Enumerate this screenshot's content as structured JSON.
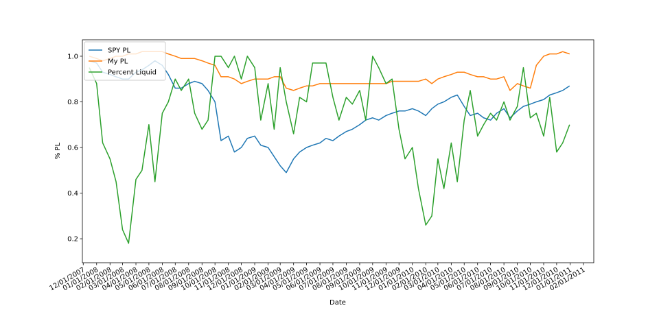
{
  "chart_data": {
    "type": "line",
    "x_label": "Date",
    "y_label": "% PL",
    "x": [
      "2007-12-15",
      "2008-01-01",
      "2008-01-15",
      "2008-02-01",
      "2008-02-15",
      "2008-03-01",
      "2008-03-15",
      "2008-04-01",
      "2008-04-15",
      "2008-05-01",
      "2008-05-15",
      "2008-06-01",
      "2008-06-15",
      "2008-07-01",
      "2008-07-15",
      "2008-08-01",
      "2008-08-15",
      "2008-09-01",
      "2008-09-15",
      "2008-10-01",
      "2008-10-15",
      "2008-11-01",
      "2008-11-15",
      "2008-12-01",
      "2008-12-15",
      "2009-01-01",
      "2009-01-15",
      "2009-02-01",
      "2009-02-15",
      "2009-03-01",
      "2009-03-15",
      "2009-04-01",
      "2009-04-15",
      "2009-05-01",
      "2009-05-15",
      "2009-06-01",
      "2009-06-15",
      "2009-07-01",
      "2009-07-15",
      "2009-08-01",
      "2009-08-15",
      "2009-09-01",
      "2009-09-15",
      "2009-10-01",
      "2009-10-15",
      "2009-11-01",
      "2009-11-15",
      "2009-12-01",
      "2009-12-15",
      "2010-01-01",
      "2010-01-15",
      "2010-02-01",
      "2010-02-15",
      "2010-03-01",
      "2010-03-15",
      "2010-04-01",
      "2010-04-15",
      "2010-05-01",
      "2010-05-15",
      "2010-06-01",
      "2010-06-15",
      "2010-07-01",
      "2010-07-15",
      "2010-08-01",
      "2010-08-15",
      "2010-09-01",
      "2010-09-15",
      "2010-10-01",
      "2010-10-15",
      "2010-11-01",
      "2010-11-15",
      "2010-12-01",
      "2010-12-15",
      "2010-12-31"
    ],
    "series": [
      {
        "name": "SPY PL",
        "color": "#1f77b4",
        "values": [
          0.98,
          0.97,
          0.93,
          0.92,
          0.91,
          0.9,
          0.9,
          0.93,
          0.94,
          0.96,
          0.98,
          0.96,
          0.92,
          0.86,
          0.86,
          0.88,
          0.89,
          0.88,
          0.85,
          0.8,
          0.63,
          0.65,
          0.58,
          0.6,
          0.64,
          0.65,
          0.61,
          0.6,
          0.56,
          0.52,
          0.49,
          0.55,
          0.58,
          0.6,
          0.61,
          0.62,
          0.64,
          0.63,
          0.65,
          0.67,
          0.68,
          0.7,
          0.72,
          0.73,
          0.72,
          0.74,
          0.75,
          0.76,
          0.76,
          0.77,
          0.76,
          0.74,
          0.77,
          0.79,
          0.8,
          0.82,
          0.83,
          0.78,
          0.74,
          0.75,
          0.73,
          0.72,
          0.75,
          0.77,
          0.73,
          0.76,
          0.78,
          0.79,
          0.8,
          0.81,
          0.83,
          0.84,
          0.85,
          0.87
        ]
      },
      {
        "name": "My PL",
        "color": "#ff7f0e",
        "values": [
          1.0,
          0.99,
          0.98,
          0.99,
          1.0,
          1.0,
          1.01,
          1.01,
          1.02,
          1.02,
          1.02,
          1.02,
          1.01,
          1.0,
          0.99,
          0.99,
          0.99,
          0.98,
          0.97,
          0.96,
          0.91,
          0.91,
          0.9,
          0.88,
          0.89,
          0.9,
          0.9,
          0.9,
          0.91,
          0.91,
          0.86,
          0.85,
          0.86,
          0.87,
          0.87,
          0.88,
          0.88,
          0.88,
          0.88,
          0.88,
          0.88,
          0.88,
          0.88,
          0.88,
          0.88,
          0.88,
          0.89,
          0.89,
          0.89,
          0.89,
          0.89,
          0.9,
          0.88,
          0.9,
          0.91,
          0.92,
          0.93,
          0.93,
          0.92,
          0.91,
          0.91,
          0.9,
          0.9,
          0.91,
          0.85,
          0.88,
          0.87,
          0.86,
          0.96,
          1.0,
          1.01,
          1.01,
          1.02,
          1.01
        ]
      },
      {
        "name": "Percent Liquid",
        "color": "#2ca02c",
        "values": [
          0.95,
          0.88,
          0.62,
          0.55,
          0.45,
          0.24,
          0.18,
          0.46,
          0.5,
          0.7,
          0.45,
          0.75,
          0.8,
          0.9,
          0.85,
          0.9,
          0.75,
          0.68,
          0.72,
          1.0,
          1.0,
          0.95,
          1.0,
          0.9,
          1.0,
          0.95,
          0.72,
          0.88,
          0.68,
          0.95,
          0.8,
          0.66,
          0.82,
          0.8,
          0.97,
          0.97,
          0.97,
          0.82,
          0.72,
          0.82,
          0.79,
          0.85,
          0.72,
          1.0,
          0.95,
          0.88,
          0.9,
          0.68,
          0.55,
          0.6,
          0.42,
          0.26,
          0.3,
          0.55,
          0.42,
          0.62,
          0.45,
          0.72,
          0.85,
          0.65,
          0.7,
          0.75,
          0.72,
          0.8,
          0.72,
          0.78,
          0.95,
          0.73,
          0.75,
          0.65,
          0.82,
          0.58,
          0.62,
          0.7
        ]
      }
    ],
    "xlim": [
      "2007-11-29",
      "2011-02-25"
    ],
    "xticks": [
      {
        "value": "2007-12-01",
        "label": "12/01/2007"
      },
      {
        "value": "2008-01-01",
        "label": "01/01/2008"
      },
      {
        "value": "2008-02-01",
        "label": "02/01/2008"
      },
      {
        "value": "2008-03-01",
        "label": "03/01/2008"
      },
      {
        "value": "2008-04-01",
        "label": "04/01/2008"
      },
      {
        "value": "2008-05-01",
        "label": "05/01/2008"
      },
      {
        "value": "2008-06-01",
        "label": "06/01/2008"
      },
      {
        "value": "2008-07-01",
        "label": "07/01/2008"
      },
      {
        "value": "2008-08-01",
        "label": "08/01/2008"
      },
      {
        "value": "2008-09-01",
        "label": "09/01/2008"
      },
      {
        "value": "2008-10-01",
        "label": "10/01/2008"
      },
      {
        "value": "2008-11-01",
        "label": "11/01/2008"
      },
      {
        "value": "2008-12-01",
        "label": "12/01/2008"
      },
      {
        "value": "2009-01-01",
        "label": "01/01/2009"
      },
      {
        "value": "2009-02-01",
        "label": "02/01/2009"
      },
      {
        "value": "2009-03-01",
        "label": "03/01/2009"
      },
      {
        "value": "2009-04-01",
        "label": "04/01/2009"
      },
      {
        "value": "2009-05-01",
        "label": "05/01/2009"
      },
      {
        "value": "2009-06-01",
        "label": "06/01/2009"
      },
      {
        "value": "2009-07-01",
        "label": "07/01/2009"
      },
      {
        "value": "2009-08-01",
        "label": "08/01/2009"
      },
      {
        "value": "2009-09-01",
        "label": "09/01/2009"
      },
      {
        "value": "2009-10-01",
        "label": "10/01/2009"
      },
      {
        "value": "2009-11-01",
        "label": "11/01/2009"
      },
      {
        "value": "2009-12-01",
        "label": "12/01/2009"
      },
      {
        "value": "2010-01-01",
        "label": "01/01/2010"
      },
      {
        "value": "2010-02-01",
        "label": "02/01/2010"
      },
      {
        "value": "2010-03-01",
        "label": "03/01/2010"
      },
      {
        "value": "2010-04-01",
        "label": "04/01/2010"
      },
      {
        "value": "2010-05-01",
        "label": "05/01/2010"
      },
      {
        "value": "2010-06-01",
        "label": "06/01/2010"
      },
      {
        "value": "2010-07-01",
        "label": "07/01/2010"
      },
      {
        "value": "2010-08-01",
        "label": "08/01/2010"
      },
      {
        "value": "2010-09-01",
        "label": "09/01/2010"
      },
      {
        "value": "2010-10-01",
        "label": "10/01/2010"
      },
      {
        "value": "2010-11-01",
        "label": "11/01/2010"
      },
      {
        "value": "2010-12-01",
        "label": "12/01/2010"
      },
      {
        "value": "2011-01-01",
        "label": "01/01/2011"
      },
      {
        "value": "2011-02-01",
        "label": "02/01/2011"
      }
    ],
    "ylim": [
      0.095,
      1.072
    ],
    "yticks": [
      0.2,
      0.4,
      0.6,
      0.8,
      {
        "value": 1,
        "label": "1.0"
      }
    ],
    "grid": false,
    "legend": "upper-left"
  }
}
